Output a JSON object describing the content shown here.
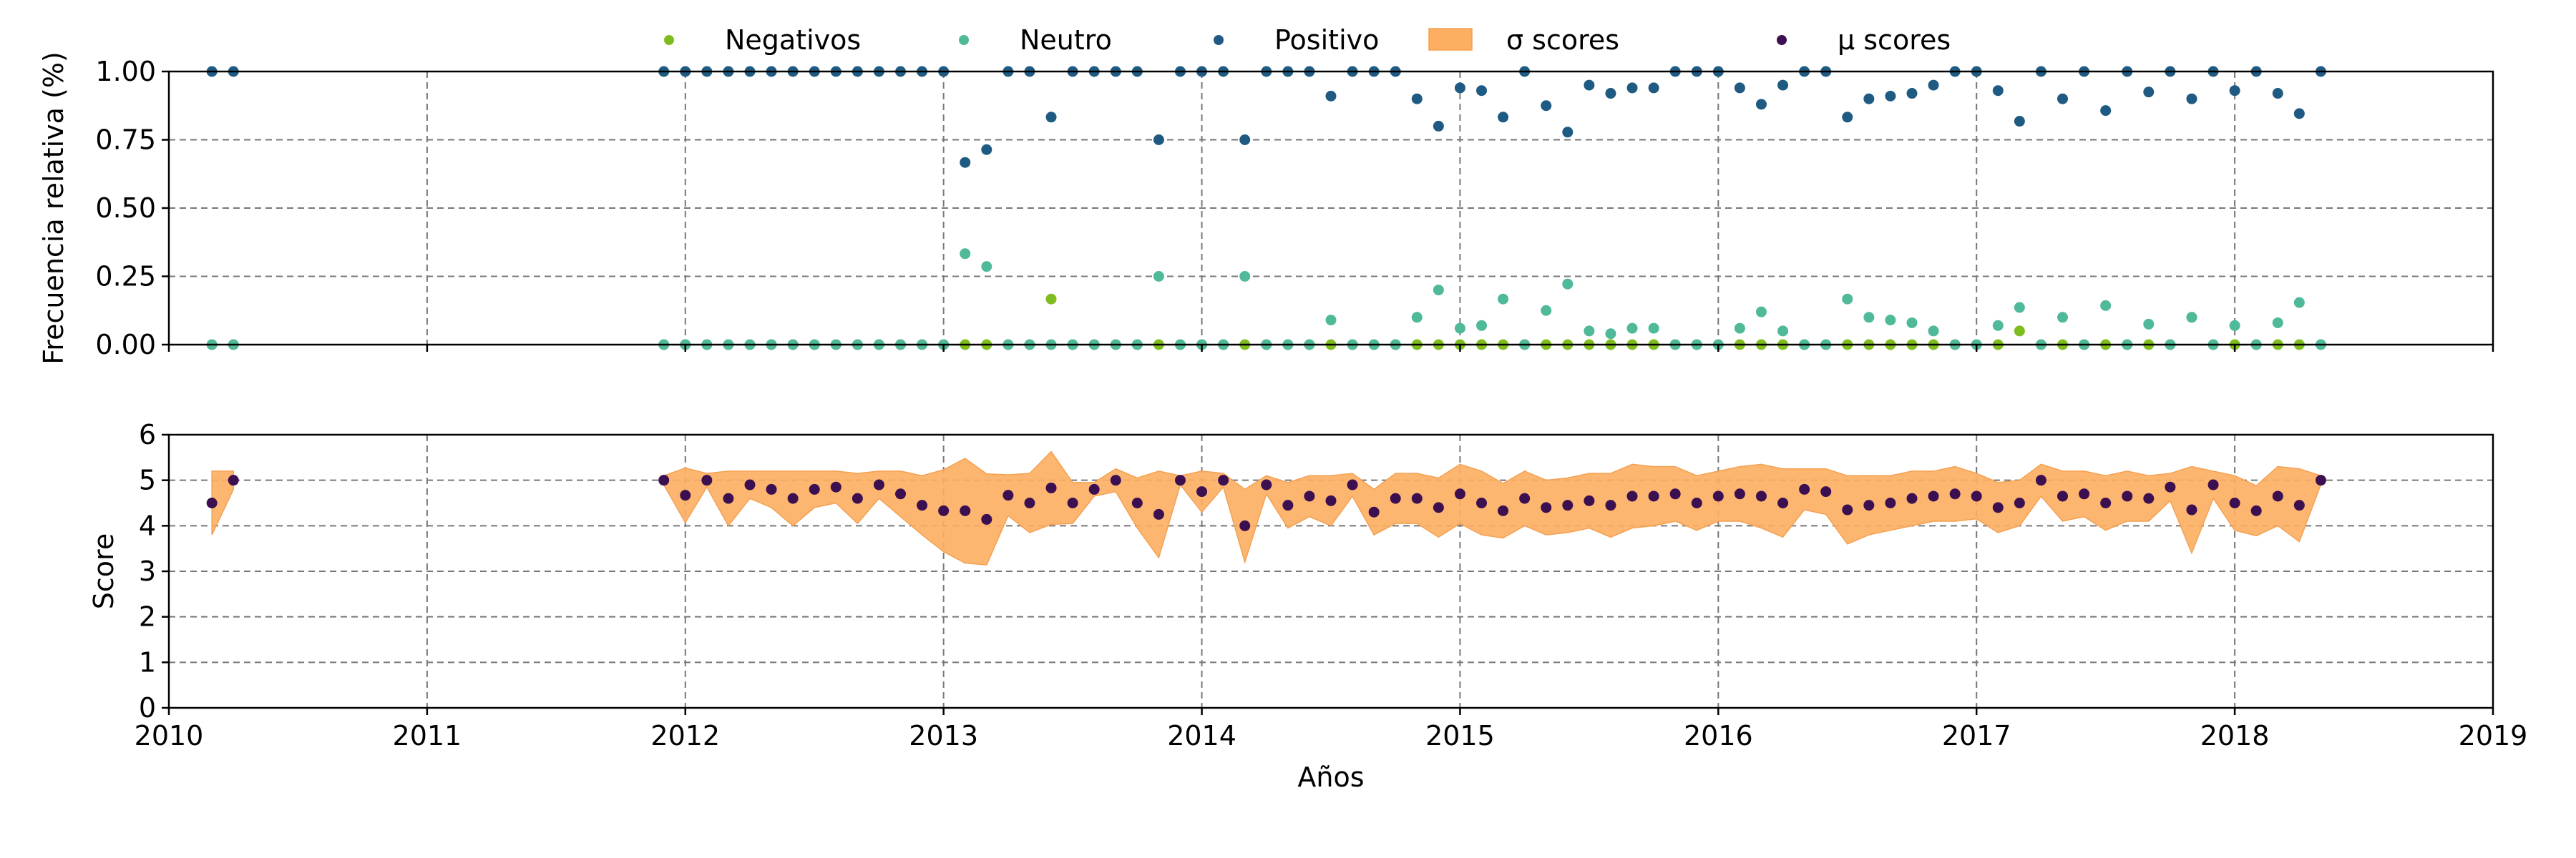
{
  "legend": {
    "items": [
      {
        "label": "Negativos",
        "kind": "marker",
        "color": "#7fbc1f"
      },
      {
        "label": "Neutro",
        "kind": "marker",
        "color": "#4fb99a"
      },
      {
        "label": "Positivo",
        "kind": "marker",
        "color": "#1f5a82"
      },
      {
        "label": "σ scores",
        "kind": "patch",
        "color": "#fdae61"
      },
      {
        "label": "μ scores",
        "kind": "marker",
        "color": "#3b0f50"
      }
    ]
  },
  "chart_data": [
    {
      "type": "scatter",
      "ylabel": "Frecuencia relativa (%)",
      "xlim": [
        "2010-01-01",
        "2019-01-01"
      ],
      "ylim": [
        0,
        1
      ],
      "yticks": [
        "0.00",
        "0.25",
        "0.50",
        "0.75",
        "1.00"
      ],
      "grid": true,
      "series": [
        {
          "name": "Negativos",
          "color": "#7fbc1f",
          "x": [
            "2010-03",
            "2010-04",
            "2011-12",
            "2012-01",
            "2012-02",
            "2012-03",
            "2012-04",
            "2012-05",
            "2012-06",
            "2012-07",
            "2012-08",
            "2012-09",
            "2012-10",
            "2012-11",
            "2012-12",
            "2013-01",
            "2013-02",
            "2013-03",
            "2013-04",
            "2013-05",
            "2013-06",
            "2013-07",
            "2013-08",
            "2013-09",
            "2013-10",
            "2013-11",
            "2013-12",
            "2014-01",
            "2014-02",
            "2014-03",
            "2014-04",
            "2014-05",
            "2014-06",
            "2014-07",
            "2014-08",
            "2014-09",
            "2014-10",
            "2014-11",
            "2014-12",
            "2015-01",
            "2015-02",
            "2015-03",
            "2015-04",
            "2015-05",
            "2015-06",
            "2015-07",
            "2015-08",
            "2015-09",
            "2015-10",
            "2015-11",
            "2015-12",
            "2016-01",
            "2016-02",
            "2016-03",
            "2016-04",
            "2016-05",
            "2016-06",
            "2016-07",
            "2016-08",
            "2016-09",
            "2016-10",
            "2016-11",
            "2016-12",
            "2017-01",
            "2017-02",
            "2017-03",
            "2017-04",
            "2017-05",
            "2017-06",
            "2017-07",
            "2017-08",
            "2017-09",
            "2017-10",
            "2017-11",
            "2017-12",
            "2018-01",
            "2018-02",
            "2018-03",
            "2018-04",
            "2018-05"
          ],
          "y": [
            0,
            0,
            0,
            0,
            0,
            0,
            0,
            0,
            0,
            0,
            0,
            0,
            0,
            0,
            0,
            0,
            0,
            0,
            0,
            0,
            0.167,
            0,
            0,
            0,
            0,
            0,
            0,
            0,
            0,
            0,
            0,
            0,
            0,
            0,
            0,
            0,
            0,
            0,
            0,
            0,
            0,
            0,
            0,
            0,
            0,
            0,
            0,
            0,
            0,
            0,
            0,
            0,
            0,
            0,
            0,
            0,
            0,
            0,
            0,
            0,
            0,
            0,
            0,
            0,
            0,
            0.05,
            0,
            0,
            0,
            0,
            0,
            0,
            0,
            0.1,
            0,
            0,
            0,
            0,
            0,
            0
          ]
        },
        {
          "name": "Neutro",
          "color": "#4fb99a",
          "x": [
            "2010-03",
            "2010-04",
            "2011-12",
            "2012-01",
            "2012-02",
            "2012-03",
            "2012-04",
            "2012-05",
            "2012-06",
            "2012-07",
            "2012-08",
            "2012-09",
            "2012-10",
            "2012-11",
            "2012-12",
            "2013-01",
            "2013-02",
            "2013-03",
            "2013-04",
            "2013-05",
            "2013-06",
            "2013-07",
            "2013-08",
            "2013-09",
            "2013-10",
            "2013-11",
            "2013-12",
            "2014-01",
            "2014-02",
            "2014-03",
            "2014-04",
            "2014-05",
            "2014-06",
            "2014-07",
            "2014-08",
            "2014-09",
            "2014-10",
            "2014-11",
            "2014-12",
            "2015-01",
            "2015-02",
            "2015-03",
            "2015-04",
            "2015-05",
            "2015-06",
            "2015-07",
            "2015-08",
            "2015-09",
            "2015-10",
            "2015-11",
            "2015-12",
            "2016-01",
            "2016-02",
            "2016-03",
            "2016-04",
            "2016-05",
            "2016-06",
            "2016-07",
            "2016-08",
            "2016-09",
            "2016-10",
            "2016-11",
            "2016-12",
            "2017-01",
            "2017-02",
            "2017-03",
            "2017-04",
            "2017-05",
            "2017-06",
            "2017-07",
            "2017-08",
            "2017-09",
            "2017-10",
            "2017-11",
            "2017-12",
            "2018-01",
            "2018-02",
            "2018-03",
            "2018-04",
            "2018-05"
          ],
          "y": [
            0,
            0,
            0,
            0,
            0,
            0,
            0,
            0,
            0,
            0,
            0,
            0,
            0,
            0,
            0,
            0,
            0.333,
            0.286,
            0,
            0,
            0,
            0,
            0,
            0,
            0,
            0.25,
            0,
            0,
            0,
            0.25,
            0,
            0,
            0,
            0.09,
            0,
            0,
            0,
            0.1,
            0.2,
            0.06,
            0.07,
            0.167,
            0,
            0.125,
            0.222,
            0.05,
            0.04,
            0.06,
            0.06,
            0,
            0,
            0,
            0.06,
            0.12,
            0.05,
            0,
            0,
            0.167,
            0.1,
            0.09,
            0.08,
            0.05,
            0,
            0,
            0.07,
            0.136,
            0,
            0.1,
            0,
            0.143,
            0,
            0.075,
            0,
            0.1,
            0,
            0.07,
            0,
            0.08,
            0.154,
            0
          ]
        },
        {
          "name": "Positivo",
          "color": "#1f5a82",
          "x": [
            "2010-03",
            "2010-04",
            "2011-12",
            "2012-01",
            "2012-02",
            "2012-03",
            "2012-04",
            "2012-05",
            "2012-06",
            "2012-07",
            "2012-08",
            "2012-09",
            "2012-10",
            "2012-11",
            "2012-12",
            "2013-01",
            "2013-02",
            "2013-03",
            "2013-04",
            "2013-05",
            "2013-06",
            "2013-07",
            "2013-08",
            "2013-09",
            "2013-10",
            "2013-11",
            "2013-12",
            "2014-01",
            "2014-02",
            "2014-03",
            "2014-04",
            "2014-05",
            "2014-06",
            "2014-07",
            "2014-08",
            "2014-09",
            "2014-10",
            "2014-11",
            "2014-12",
            "2015-01",
            "2015-02",
            "2015-03",
            "2015-04",
            "2015-05",
            "2015-06",
            "2015-07",
            "2015-08",
            "2015-09",
            "2015-10",
            "2015-11",
            "2015-12",
            "2016-01",
            "2016-02",
            "2016-03",
            "2016-04",
            "2016-05",
            "2016-06",
            "2016-07",
            "2016-08",
            "2016-09",
            "2016-10",
            "2016-11",
            "2016-12",
            "2017-01",
            "2017-02",
            "2017-03",
            "2017-04",
            "2017-05",
            "2017-06",
            "2017-07",
            "2017-08",
            "2017-09",
            "2017-10",
            "2017-11",
            "2017-12",
            "2018-01",
            "2018-02",
            "2018-03",
            "2018-04",
            "2018-05"
          ],
          "y": [
            1,
            1,
            1,
            1,
            1,
            1,
            1,
            1,
            1,
            1,
            1,
            1,
            1,
            1,
            1,
            1,
            0.667,
            0.714,
            1,
            1,
            0.833,
            1,
            1,
            1,
            1,
            0.75,
            1,
            1,
            1,
            0.75,
            1,
            1,
            1,
            0.91,
            1,
            1,
            1,
            0.9,
            0.8,
            0.94,
            0.93,
            0.833,
            1,
            0.875,
            0.778,
            0.95,
            0.92,
            0.94,
            0.94,
            1,
            1,
            1,
            0.94,
            0.88,
            0.95,
            1,
            1,
            0.833,
            0.9,
            0.91,
            0.92,
            0.95,
            1,
            1,
            0.93,
            0.818,
            1,
            0.9,
            1,
            0.857,
            1,
            0.925,
            1,
            0.9,
            1,
            0.93,
            1,
            0.92,
            0.846,
            1
          ]
        }
      ]
    },
    {
      "type": "area",
      "xlabel": "Años",
      "ylabel": "Score",
      "xlim": [
        "2010-01-01",
        "2019-01-01"
      ],
      "ylim": [
        0,
        6
      ],
      "xticks": [
        "2010",
        "2011",
        "2012",
        "2013",
        "2014",
        "2015",
        "2016",
        "2017",
        "2018",
        "2019"
      ],
      "yticks": [
        "0",
        "1",
        "2",
        "3",
        "4",
        "5",
        "6"
      ],
      "grid": true,
      "series": [
        {
          "name": "μ scores",
          "color": "#3b0f50",
          "sigma_color": "#fdae61",
          "x": [
            "2010-03",
            "2010-04",
            "2011-12",
            "2012-01",
            "2012-02",
            "2012-03",
            "2012-04",
            "2012-05",
            "2012-06",
            "2012-07",
            "2012-08",
            "2012-09",
            "2012-10",
            "2012-11",
            "2012-12",
            "2013-01",
            "2013-02",
            "2013-03",
            "2013-04",
            "2013-05",
            "2013-06",
            "2013-07",
            "2013-08",
            "2013-09",
            "2013-10",
            "2013-11",
            "2013-12",
            "2014-01",
            "2014-02",
            "2014-03",
            "2014-04",
            "2014-05",
            "2014-06",
            "2014-07",
            "2014-08",
            "2014-09",
            "2014-10",
            "2014-11",
            "2014-12",
            "2015-01",
            "2015-02",
            "2015-03",
            "2015-04",
            "2015-05",
            "2015-06",
            "2015-07",
            "2015-08",
            "2015-09",
            "2015-10",
            "2015-11",
            "2015-12",
            "2016-01",
            "2016-02",
            "2016-03",
            "2016-04",
            "2016-05",
            "2016-06",
            "2016-07",
            "2016-08",
            "2016-09",
            "2016-10",
            "2016-11",
            "2016-12",
            "2017-01",
            "2017-02",
            "2017-03",
            "2017-04",
            "2017-05",
            "2017-06",
            "2017-07",
            "2017-08",
            "2017-09",
            "2017-10",
            "2017-11",
            "2017-12",
            "2018-01",
            "2018-02",
            "2018-03",
            "2018-04",
            "2018-05"
          ],
          "mu": [
            4.5,
            5,
            5,
            4.67,
            5,
            4.6,
            4.9,
            4.8,
            4.6,
            4.8,
            4.85,
            4.6,
            4.9,
            4.7,
            4.45,
            4.33,
            4.33,
            4.14,
            4.67,
            4.5,
            4.83,
            4.5,
            4.8,
            5,
            4.5,
            4.25,
            5,
            4.75,
            5,
            4,
            4.9,
            4.45,
            4.65,
            4.55,
            4.9,
            4.3,
            4.6,
            4.6,
            4.4,
            4.7,
            4.5,
            4.33,
            4.6,
            4.4,
            4.45,
            4.55,
            4.45,
            4.65,
            4.65,
            4.7,
            4.5,
            4.65,
            4.7,
            4.65,
            4.5,
            4.8,
            4.75,
            4.35,
            4.45,
            4.5,
            4.6,
            4.65,
            4.7,
            4.65,
            4.4,
            4.5,
            5,
            4.65,
            4.7,
            4.5,
            4.65,
            4.6,
            4.85,
            4.35,
            4.9,
            4.5,
            4.33,
            4.65,
            4.45,
            5
          ],
          "sigma": [
            0.7,
            0.2,
            0.1,
            0.6,
            0.15,
            0.6,
            0.3,
            0.4,
            0.6,
            0.4,
            0.35,
            0.55,
            0.3,
            0.5,
            0.65,
            0.9,
            1.15,
            1.0,
            0.45,
            0.65,
            0.8,
            0.45,
            0.15,
            0.25,
            0.55,
            0.95,
            0.1,
            0.45,
            0.15,
            0.8,
            0.2,
            0.5,
            0.45,
            0.55,
            0.25,
            0.5,
            0.55,
            0.55,
            0.65,
            0.65,
            0.7,
            0.6,
            0.6,
            0.6,
            0.6,
            0.6,
            0.7,
            0.7,
            0.65,
            0.6,
            0.6,
            0.55,
            0.6,
            0.7,
            0.75,
            0.45,
            0.5,
            0.75,
            0.65,
            0.6,
            0.6,
            0.55,
            0.6,
            0.5,
            0.55,
            0.5,
            0.35,
            0.55,
            0.5,
            0.6,
            0.55,
            0.5,
            0.3,
            0.95,
            0.3,
            0.6,
            0.55,
            0.65,
            0.8,
            0.1
          ]
        }
      ]
    }
  ]
}
